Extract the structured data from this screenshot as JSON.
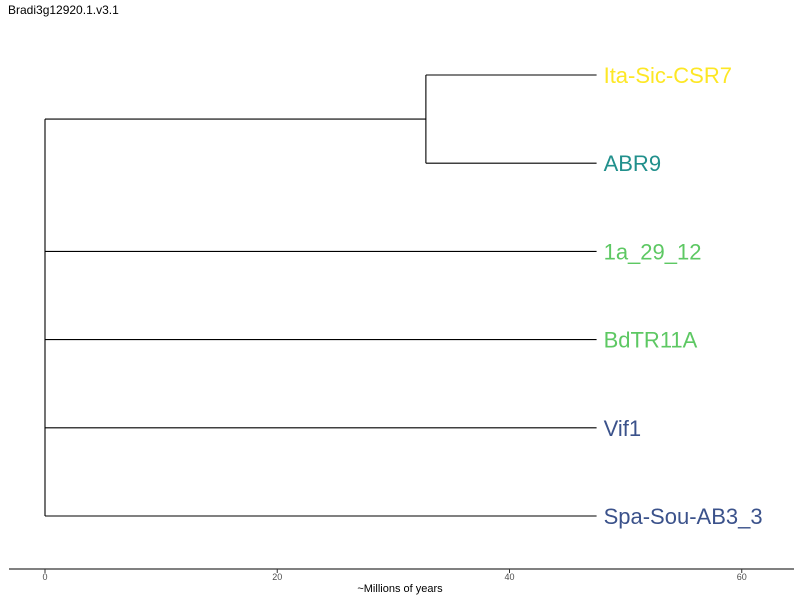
{
  "title": "Bradi3g12920.1.v3.1",
  "chart_data": {
    "type": "dendrogram",
    "title": "Bradi3g12920.1.v3.1",
    "xlabel": "~Millions of years",
    "ylabel": "",
    "xlim": [
      -3.1,
      64.5
    ],
    "x_ticks": [
      0,
      20,
      40,
      60
    ],
    "x_tick_labels": [
      "0",
      "20",
      "40",
      "60"
    ],
    "grid": false,
    "legend": "none",
    "tip_depth": 47.5,
    "leaves": [
      {
        "label": "Ita-Sic-CSR7",
        "color": "#FDE725"
      },
      {
        "label": "ABR9",
        "color": "#21908C"
      },
      {
        "label": "1a_29_12",
        "color": "#5DC863"
      },
      {
        "label": "BdTR11A",
        "color": "#5DC863"
      },
      {
        "label": "Vif1",
        "color": "#3B528B"
      },
      {
        "label": "Spa-Sou-AB3_3",
        "color": "#3B528B"
      }
    ],
    "clades": [
      {
        "node_age": 32.8,
        "leaves": [
          "Ita-Sic-CSR7",
          "ABR9"
        ]
      }
    ],
    "root": {
      "node_age": 0
    }
  }
}
